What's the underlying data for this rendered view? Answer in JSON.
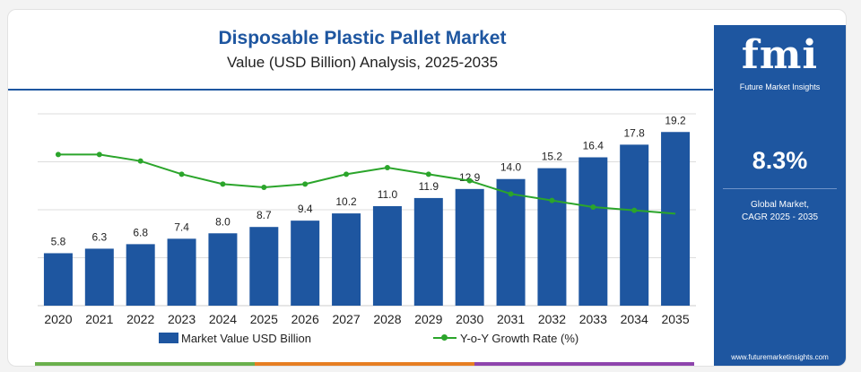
{
  "header": {
    "title": "Disposable Plastic Pallet Market",
    "subtitle": "Value (USD Billion) Analysis, 2025-2035"
  },
  "side_panel": {
    "logo_text": "fmi",
    "logo_subtext": "Future Market Insights",
    "cagr_value": "8.3%",
    "cagr_label_line1": "Global Market,",
    "cagr_label_line2": "CAGR 2025 - 2035",
    "url": "www.futuremarketinsights.com"
  },
  "legend": {
    "bar_label": "Market Value USD Billion",
    "line_label": "Y-o-Y Growth Rate (%)"
  },
  "colors": {
    "bar": "#1e56a0",
    "line": "#2ba52b",
    "panel": "#1e56a0",
    "footer": [
      "#6ab04c",
      "#e67e22",
      "#8e44ad",
      "#d0d0d0"
    ]
  },
  "chart_data": {
    "type": "bar",
    "categories": [
      "2020",
      "2021",
      "2022",
      "2023",
      "2024",
      "2025",
      "2026",
      "2027",
      "2028",
      "2029",
      "2030",
      "2031",
      "2032",
      "2033",
      "2034",
      "2035"
    ],
    "series": [
      {
        "name": "Market Value USD Billion",
        "type": "bar",
        "values": [
          5.8,
          6.3,
          6.8,
          7.4,
          8.0,
          8.7,
          9.4,
          10.2,
          11.0,
          11.9,
          12.9,
          14.0,
          15.2,
          16.4,
          17.8,
          19.2
        ],
        "labels": [
          "5.8",
          "6.3",
          "6.8",
          "7.4",
          "8.0",
          "8.7",
          "9.4",
          "10.2",
          "11.0",
          "11.9",
          "12.9",
          "14.0",
          "15.2",
          "16.4",
          "17.8",
          "19.2"
        ]
      },
      {
        "name": "Y-o-Y Growth Rate (%)",
        "type": "line",
        "values": [
          8.6,
          8.6,
          8.4,
          8.0,
          7.7,
          7.6,
          7.7,
          8.0,
          8.2,
          8.0,
          7.8,
          7.4,
          7.2,
          7.0,
          6.9,
          6.8
        ]
      }
    ],
    "ylim": [
      0,
      22
    ],
    "line_ylim": [
      4,
      10
    ],
    "grid": true,
    "legend_position": "bottom"
  }
}
